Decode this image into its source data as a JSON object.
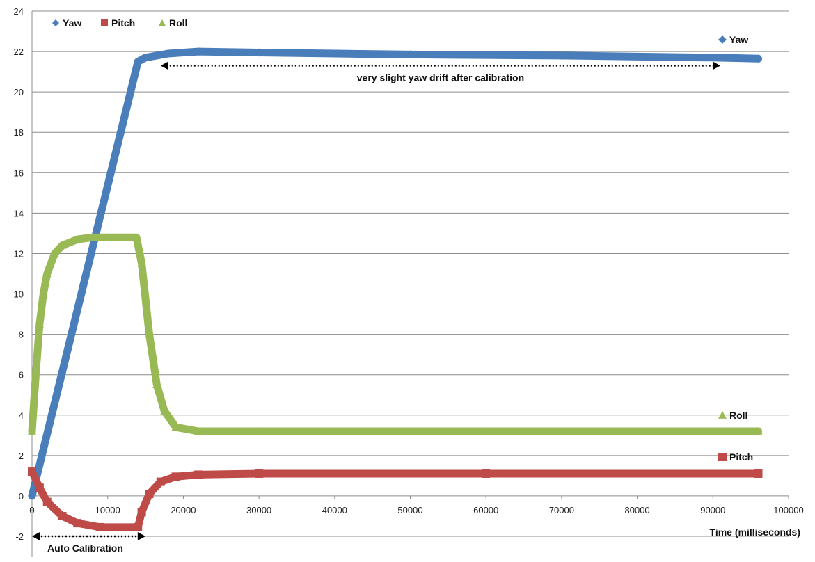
{
  "chart_data": {
    "type": "scatter",
    "title": "",
    "xlabel": "Time (milliseconds)",
    "ylabel": "",
    "xlim": [
      0,
      100000
    ],
    "ylim": [
      -2,
      24
    ],
    "x_ticks": [
      0,
      10000,
      20000,
      30000,
      40000,
      50000,
      60000,
      70000,
      80000,
      90000,
      100000
    ],
    "y_ticks": [
      -2,
      0,
      2,
      4,
      6,
      8,
      10,
      12,
      14,
      16,
      18,
      20,
      22,
      24
    ],
    "grid": "horizontal",
    "legend": "top-left",
    "series": [
      {
        "name": "Yaw",
        "color": "#4a7ebb",
        "marker": "diamond",
        "x": [
          0,
          14000,
          15000,
          18000,
          22000,
          30000,
          50000,
          70000,
          90000,
          96000
        ],
        "y": [
          0,
          21.5,
          21.7,
          21.9,
          22.0,
          21.95,
          21.85,
          21.8,
          21.7,
          21.65
        ]
      },
      {
        "name": "Pitch",
        "color": "#be4b48",
        "marker": "square",
        "x": [
          0,
          1000,
          2000,
          4000,
          6000,
          9000,
          14000,
          14500,
          15500,
          17000,
          19000,
          22000,
          30000,
          60000,
          96000
        ],
        "y": [
          1.2,
          0.4,
          -0.3,
          -1.0,
          -1.35,
          -1.55,
          -1.55,
          -0.8,
          0.1,
          0.7,
          0.95,
          1.05,
          1.1,
          1.1,
          1.1
        ]
      },
      {
        "name": "Roll",
        "color": "#98b954",
        "marker": "triangle",
        "x": [
          0,
          500,
          1000,
          1500,
          2000,
          3000,
          4000,
          6000,
          8000,
          10000,
          13800,
          14500,
          15500,
          16500,
          17500,
          19000,
          22000,
          30000,
          60000,
          96000
        ],
        "y": [
          3.2,
          6.0,
          8.5,
          10.0,
          11.0,
          12.0,
          12.4,
          12.7,
          12.8,
          12.8,
          12.8,
          11.5,
          8.0,
          5.5,
          4.2,
          3.4,
          3.2,
          3.2,
          3.2,
          3.2
        ]
      }
    ],
    "annotations": [
      {
        "text": "very slight yaw drift after calibration",
        "x_start": 17000,
        "x_end": 91000,
        "y": 21.3
      },
      {
        "text": "Auto Calibration",
        "x_start": 0,
        "x_end": 15000,
        "y": -2
      }
    ],
    "end_labels": [
      "Yaw",
      "Roll",
      "Pitch"
    ]
  }
}
